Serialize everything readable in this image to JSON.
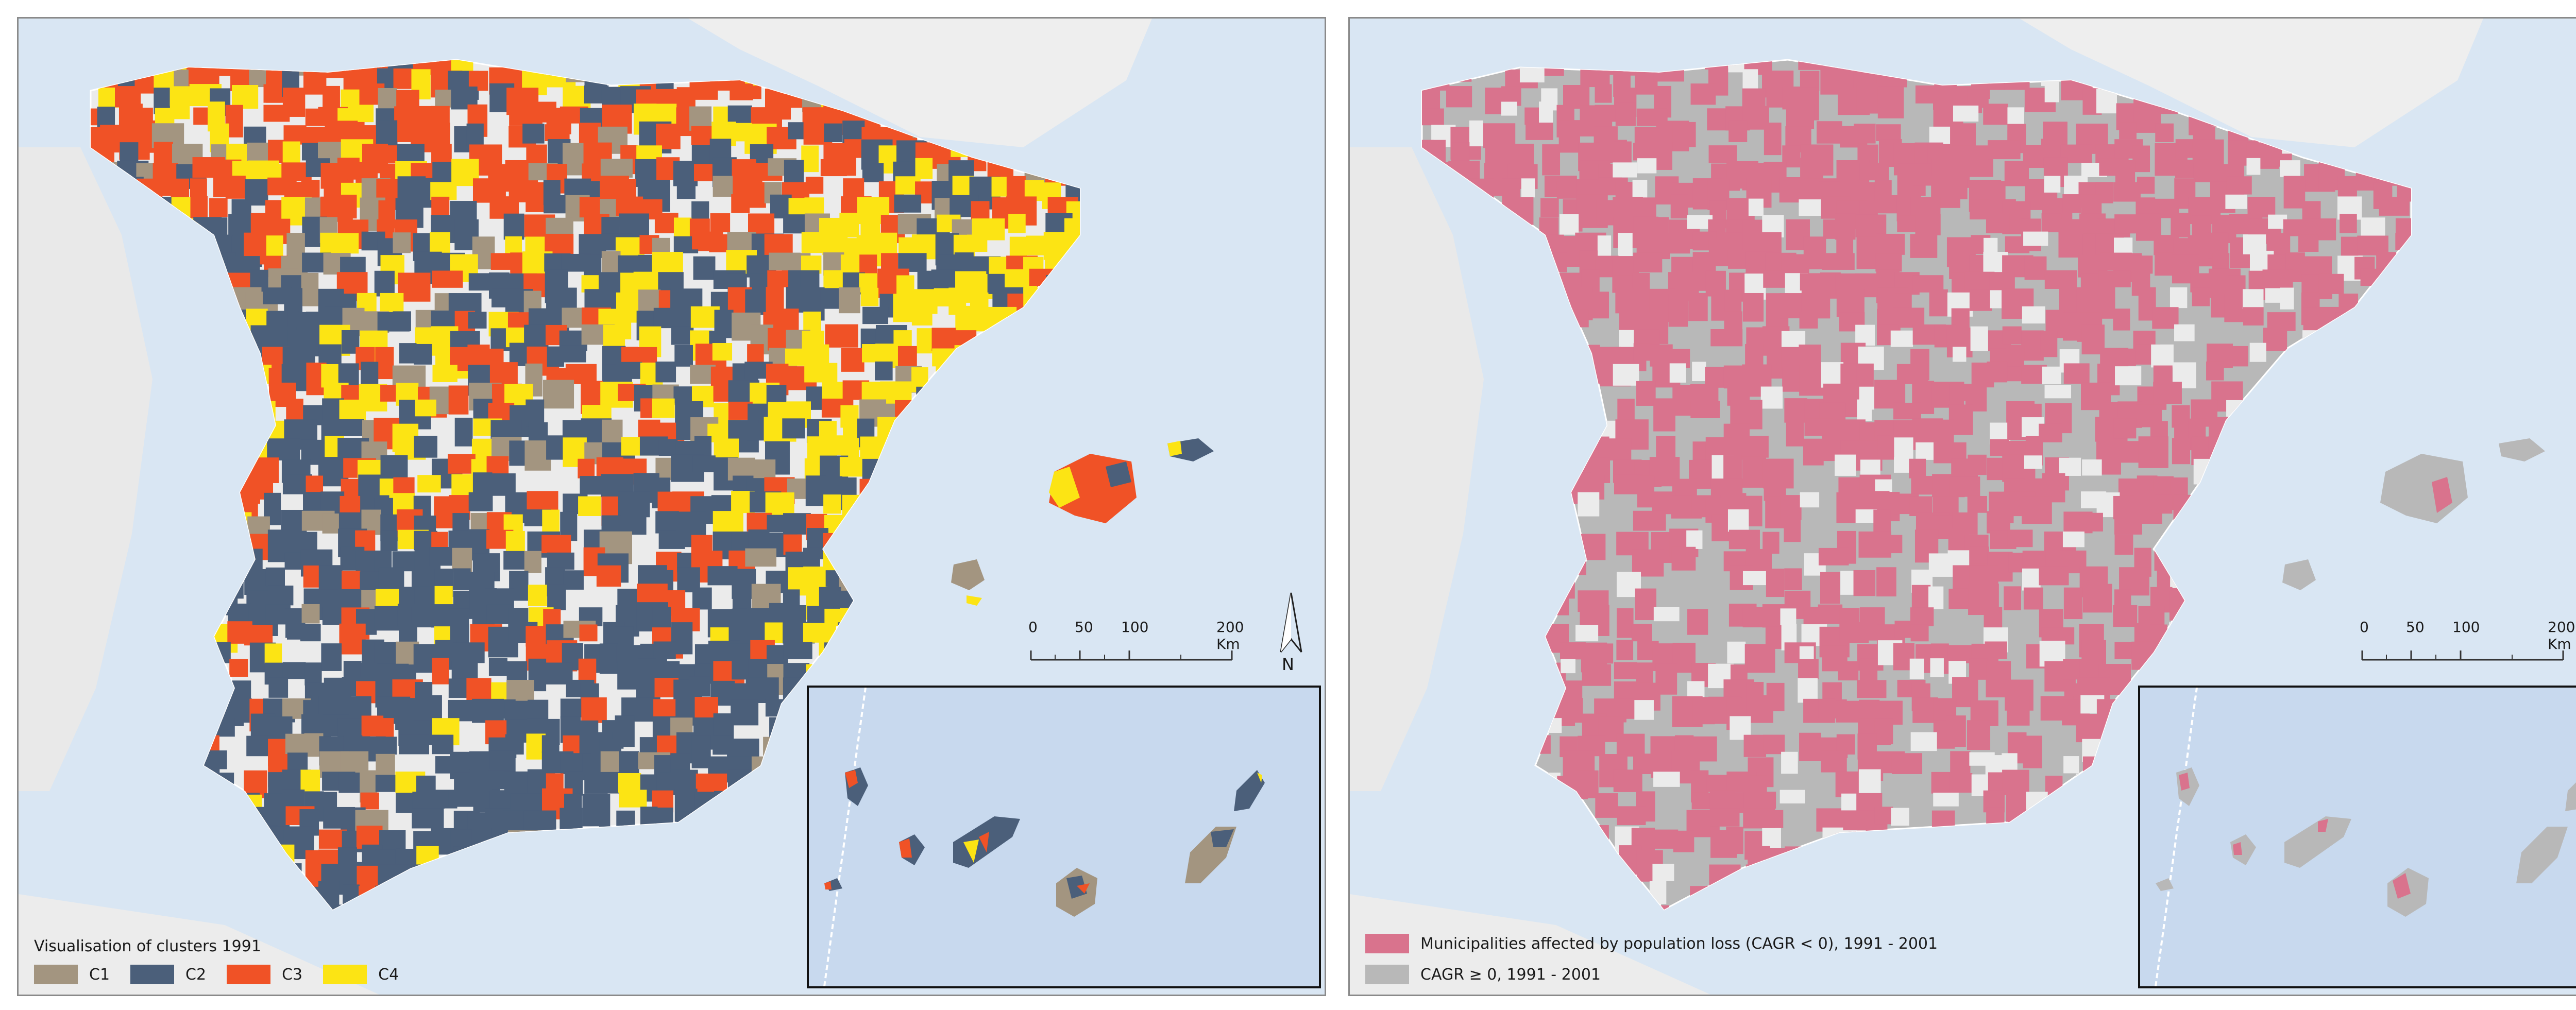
{
  "colors": {
    "c1": "#a39580",
    "c2": "#4b5f7a",
    "c3": "#f05226",
    "c4": "#fce414",
    "loss": "#d9738d",
    "gain": "#b8b8b8",
    "sea": "#d9e6f3",
    "land_bg": "#ebebeb"
  },
  "left_map": {
    "legend_title": "Visualisation of clusters 1991",
    "legend_items": [
      {
        "label": "C1",
        "color": "#a39580"
      },
      {
        "label": "C2",
        "color": "#4b5f7a"
      },
      {
        "label": "C3",
        "color": "#f05226"
      },
      {
        "label": "C4",
        "color": "#fce414"
      }
    ]
  },
  "right_map": {
    "legend_items": [
      {
        "label": "Municipalities affected by population loss (CAGR < 0), 1991 - 2001",
        "color": "#d9738d"
      },
      {
        "label": "CAGR ≥ 0, 1991 - 2001",
        "color": "#b8b8b8"
      }
    ]
  },
  "scale_bar": {
    "ticks": [
      "0",
      "50",
      "100",
      "200 Km"
    ]
  },
  "north_arrow": {
    "icon": "north-arrow-icon",
    "label": "N"
  }
}
